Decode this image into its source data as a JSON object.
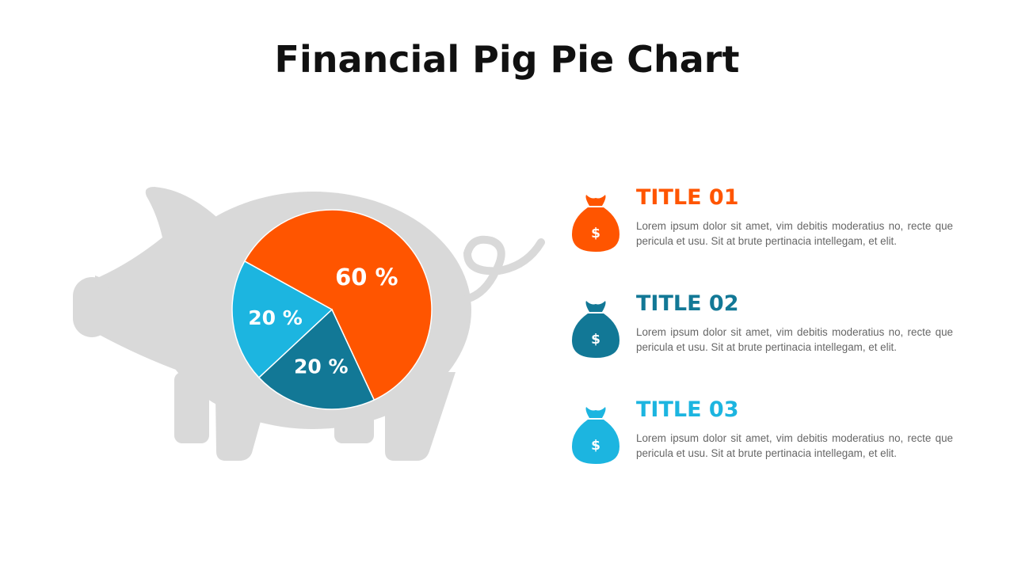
{
  "page": {
    "title": "Financial Pig Pie Chart"
  },
  "chart_data": {
    "type": "pie",
    "title": "Financial Pig Pie Chart",
    "slices": [
      {
        "name": "TITLE 01",
        "value": 60,
        "label": "60 %",
        "color": "#FF5500"
      },
      {
        "name": "TITLE 02",
        "value": 20,
        "label": "20 %",
        "color": "#127896"
      },
      {
        "name": "TITLE 03",
        "value": 20,
        "label": "20 %",
        "color": "#1CB5E0"
      }
    ]
  },
  "legend": {
    "items": [
      {
        "title": "TITLE 01",
        "color": "#FF5500",
        "icon": "money-bag-icon",
        "icon_symbol": "$",
        "text": "Lorem ipsum dolor sit amet, vim debitis moderatius no, recte que pericula et usu. Sit at brute pertinacia intellegam, et elit."
      },
      {
        "title": "TITLE 02",
        "color": "#127896",
        "icon": "money-bag-icon",
        "icon_symbol": "$",
        "text": "Lorem ipsum dolor sit amet, vim debitis moderatius no, recte que pericula et usu. Sit at brute pertinacia intellegam, et elit."
      },
      {
        "title": "TITLE 03",
        "color": "#1CB5E0",
        "icon": "money-bag-icon",
        "icon_symbol": "$",
        "text": "Lorem ipsum dolor sit amet, vim debitis moderatius no, recte que pericula et usu. Sit at brute pertinacia intellegam, et elit."
      }
    ]
  },
  "colors": {
    "pig": "#D9D9D9",
    "title": "#111111",
    "text": "#666666"
  }
}
